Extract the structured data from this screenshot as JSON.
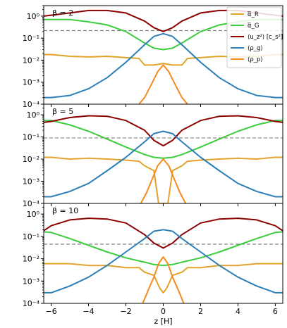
{
  "chart_data": {
    "type": "line",
    "xlabel": "z [H]",
    "xlim": [
      -6.4,
      6.4
    ],
    "x_ticks": [
      "-6",
      "-4",
      "-2",
      "0",
      "2",
      "4",
      "6"
    ],
    "x_tick_values": [
      -6,
      -4,
      -2,
      0,
      2,
      4,
      6
    ],
    "yscale": "log",
    "ylim": [
      0.0001,
      3
    ],
    "y_ticks": [
      "10⁻⁴",
      "10⁻³",
      "10⁻²",
      "10⁻¹",
      "10⁰"
    ],
    "y_tick_values": [
      0.0001,
      0.001,
      0.01,
      0.1,
      1
    ],
    "legend": {
      "placement": "top-right",
      "entries": [
        {
          "label": "α̅_R",
          "color": "#e3a32a"
        },
        {
          "label": "α̅_G",
          "color": "#3ccc3c"
        },
        {
          "label": "⟨u_z²⟩ [c_s²]",
          "color": "#8b0000"
        },
        {
          "label": "⟨ρ_g⟩",
          "color": "#2c7fb8"
        },
        {
          "label": "⟨ρ_p⟩",
          "color": "#f58a1f"
        }
      ]
    },
    "colors": {
      "alphaR": "#e3a32a",
      "alphaG": "#3ccc3c",
      "uz2": "#8b0000",
      "rhog": "#2c7fb8",
      "rhop": "#f58a1f",
      "dashed": "#808080"
    },
    "panels": [
      {
        "beta_label": "β = 2",
        "dashed_value": 0.22,
        "series": {
          "uz2": {
            "x": [
              -6.4,
              -6,
              -5,
              -4,
              -3,
              -2,
              -1,
              -0.5,
              0,
              0.5,
              1,
              2,
              3,
              4,
              5,
              6,
              6.4
            ],
            "y": [
              1.0,
              1.1,
              1.4,
              1.8,
              1.8,
              1.4,
              0.6,
              0.3,
              0.2,
              0.3,
              0.6,
              1.4,
              1.8,
              1.8,
              1.4,
              1.1,
              1.0
            ]
          },
          "alphaG": {
            "x": [
              -6.4,
              -6,
              -5,
              -4,
              -3,
              -2,
              -1,
              -0.5,
              0,
              0.5,
              1,
              2,
              3,
              4,
              5,
              6,
              6.4
            ],
            "y": [
              0.7,
              0.7,
              0.7,
              0.55,
              0.4,
              0.2,
              0.06,
              0.035,
              0.03,
              0.035,
              0.06,
              0.2,
              0.4,
              0.55,
              0.7,
              0.7,
              0.7
            ]
          },
          "alphaR": {
            "x": [
              -6.4,
              -6,
              -5,
              -4,
              -3,
              -2,
              -1.3,
              -1,
              -0.5,
              0,
              0.5,
              1,
              1.3,
              2,
              3,
              4,
              5,
              6,
              6.4
            ],
            "y": [
              0.018,
              0.018,
              0.015,
              0.014,
              0.015,
              0.013,
              0.012,
              0.006,
              0.006,
              0.007,
              0.006,
              0.006,
              0.012,
              0.013,
              0.015,
              0.014,
              0.015,
              0.018,
              0.018
            ]
          },
          "rhog": {
            "x": [
              -6.4,
              -6,
              -5,
              -4,
              -3,
              -2,
              -1,
              -0.5,
              0,
              0.5,
              1,
              2,
              3,
              4,
              5,
              6,
              6.4
            ],
            "y": [
              0.0002,
              0.0002,
              0.00025,
              0.0005,
              0.0016,
              0.008,
              0.05,
              0.12,
              0.16,
              0.12,
              0.05,
              0.008,
              0.0016,
              0.0005,
              0.00025,
              0.0002,
              0.0002
            ]
          },
          "rhop": {
            "x": [
              -1.3,
              -1,
              -0.6,
              -0.3,
              0,
              0.3,
              0.6,
              1,
              1.3
            ],
            "y": [
              0.0001,
              0.0002,
              0.0009,
              0.003,
              0.006,
              0.003,
              0.0009,
              0.0002,
              0.0001
            ]
          }
        }
      },
      {
        "beta_label": "β = 5",
        "dashed_value": 0.09,
        "series": {
          "uz2": {
            "x": [
              -6.4,
              -6,
              -5,
              -4,
              -3,
              -2,
              -1,
              -0.5,
              0,
              0.5,
              1,
              2,
              3,
              4,
              5,
              6,
              6.4
            ],
            "y": [
              0.45,
              0.5,
              0.75,
              0.9,
              0.85,
              0.55,
              0.2,
              0.07,
              0.04,
              0.07,
              0.2,
              0.55,
              0.85,
              0.9,
              0.75,
              0.5,
              0.45
            ]
          },
          "alphaG": {
            "x": [
              -6.4,
              -6,
              -5,
              -4,
              -3,
              -2,
              -1,
              -0.5,
              0,
              0.5,
              1,
              2,
              3,
              4,
              5,
              6,
              6.4
            ],
            "y": [
              0.55,
              0.55,
              0.35,
              0.18,
              0.08,
              0.035,
              0.016,
              0.012,
              0.011,
              0.012,
              0.016,
              0.035,
              0.08,
              0.18,
              0.35,
              0.55,
              0.55
            ]
          },
          "alphaR": {
            "x": [
              -6.4,
              -6,
              -5,
              -4,
              -3,
              -2,
              -1.3,
              -1,
              -0.5,
              -0.25,
              0,
              0.25,
              0.5,
              1,
              1.3,
              2,
              3,
              4,
              5,
              6,
              6.4
            ],
            "y": [
              0.012,
              0.012,
              0.01,
              0.011,
              0.01,
              0.009,
              0.008,
              0.005,
              0.003,
              0.0001,
              0.0001,
              0.0001,
              0.003,
              0.005,
              0.008,
              0.009,
              0.01,
              0.011,
              0.01,
              0.012,
              0.012
            ]
          },
          "rhog": {
            "x": [
              -6.4,
              -6,
              -5,
              -4,
              -3,
              -2,
              -1,
              -0.5,
              0,
              0.5,
              1,
              2,
              3,
              4,
              5,
              6,
              6.4
            ],
            "y": [
              0.0002,
              0.0002,
              0.00035,
              0.0008,
              0.003,
              0.012,
              0.06,
              0.14,
              0.18,
              0.14,
              0.06,
              0.012,
              0.003,
              0.0008,
              0.00035,
              0.0002,
              0.0002
            ]
          },
          "rhop": {
            "x": [
              -1.2,
              -0.9,
              -0.6,
              -0.3,
              0,
              0.3,
              0.6,
              0.9,
              1.2
            ],
            "y": [
              0.0001,
              0.0003,
              0.0012,
              0.005,
              0.01,
              0.005,
              0.0012,
              0.0003,
              0.0001
            ]
          }
        }
      },
      {
        "beta_label": "β = 10",
        "dashed_value": 0.045,
        "series": {
          "uz2": {
            "x": [
              -6.4,
              -6,
              -5,
              -4,
              -3,
              -2,
              -1,
              -0.5,
              0,
              0.5,
              1,
              2,
              3,
              4,
              5,
              6,
              6.4
            ],
            "y": [
              0.18,
              0.3,
              0.55,
              0.65,
              0.6,
              0.4,
              0.12,
              0.05,
              0.03,
              0.05,
              0.12,
              0.4,
              0.6,
              0.65,
              0.55,
              0.3,
              0.18
            ]
          },
          "alphaG": {
            "x": [
              -6.4,
              -6,
              -5,
              -4,
              -3,
              -2,
              -1,
              -0.5,
              0,
              0.5,
              1,
              2,
              3,
              4,
              5,
              6,
              6.4
            ],
            "y": [
              0.16,
              0.15,
              0.08,
              0.04,
              0.02,
              0.011,
              0.007,
              0.0055,
              0.005,
              0.0055,
              0.007,
              0.011,
              0.02,
              0.04,
              0.08,
              0.15,
              0.16
            ]
          },
          "alphaR": {
            "x": [
              -6.4,
              -6,
              -5,
              -4,
              -3,
              -2,
              -1.3,
              -1,
              -0.5,
              -0.2,
              0,
              0.2,
              0.5,
              1,
              1.3,
              2,
              3,
              4,
              5,
              6,
              6.4
            ],
            "y": [
              0.006,
              0.006,
              0.006,
              0.005,
              0.005,
              0.004,
              0.004,
              0.0025,
              0.0018,
              0.0005,
              0.0003,
              0.0005,
              0.0018,
              0.0025,
              0.004,
              0.004,
              0.005,
              0.005,
              0.006,
              0.006,
              0.006
            ]
          },
          "rhog": {
            "x": [
              -6.4,
              -6,
              -5,
              -4,
              -3,
              -2,
              -1,
              -0.5,
              0,
              0.5,
              1,
              2,
              3,
              4,
              5,
              6,
              6.4
            ],
            "y": [
              0.0003,
              0.0003,
              0.0006,
              0.0015,
              0.005,
              0.02,
              0.08,
              0.17,
              0.2,
              0.17,
              0.08,
              0.02,
              0.005,
              0.0015,
              0.0006,
              0.0003,
              0.0003
            ]
          },
          "rhop": {
            "x": [
              -1.1,
              -0.8,
              -0.5,
              -0.25,
              0,
              0.25,
              0.5,
              0.8,
              1.1
            ],
            "y": [
              0.0001,
              0.0004,
              0.0015,
              0.006,
              0.012,
              0.006,
              0.0015,
              0.0004,
              0.0001
            ]
          }
        }
      }
    ]
  }
}
